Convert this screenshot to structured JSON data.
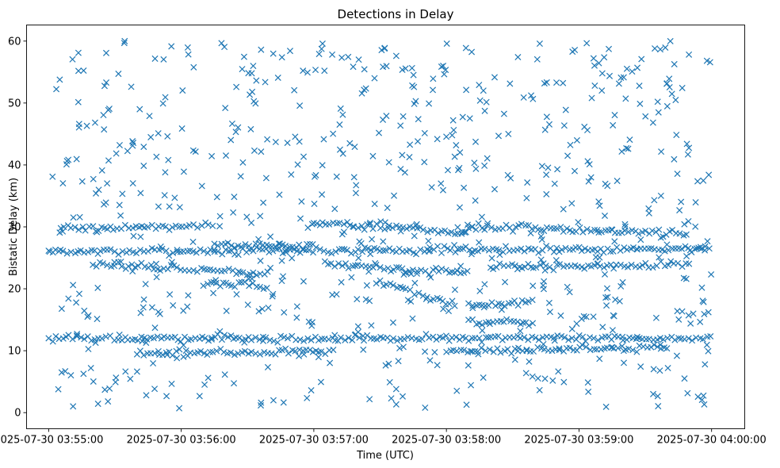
{
  "chart_data": {
    "type": "scatter",
    "title": "Detections in Delay",
    "xlabel": "Time (UTC)",
    "ylabel": "Bistatic Delay (km)",
    "xlim": [
      "2025-07-30 03:54:50",
      "2025-07-30 04:00:15"
    ],
    "ylim": [
      -2.6,
      62.6
    ],
    "x_ticks": [
      "2025-07-30 03:55:00",
      "2025-07-30 03:56:00",
      "2025-07-30 03:57:00",
      "2025-07-30 03:58:00",
      "2025-07-30 03:59:00",
      "2025-07-30 04:00:00"
    ],
    "y_ticks": [
      0,
      10,
      20,
      30,
      40,
      50,
      60
    ],
    "marker": "x",
    "grid": false,
    "color": "#1f77b4",
    "series": [
      {
        "tracks": [
          {
            "start": "2025-07-30 03:55:00",
            "end": "2025-07-30 04:00:00",
            "from": 26.0,
            "to": 26.5,
            "note": "dense band ~26 km"
          },
          {
            "start": "2025-07-30 03:55:05",
            "end": "2025-07-30 03:56:15",
            "from": 29.5,
            "to": 30.5
          },
          {
            "start": "2025-07-30 03:56:15",
            "end": "2025-07-30 03:57:00",
            "from": 27.0,
            "to": 27.0
          },
          {
            "start": "2025-07-30 03:57:00",
            "end": "2025-07-30 03:58:10",
            "from": 30.8,
            "to": 29.0
          },
          {
            "start": "2025-07-30 03:58:10",
            "end": "2025-07-30 03:59:50",
            "from": 30.0,
            "to": 29.0
          },
          {
            "start": "2025-07-30 03:55:20",
            "end": "2025-07-30 03:56:40",
            "from": 24.0,
            "to": 22.5
          },
          {
            "start": "2025-07-30 03:56:10",
            "end": "2025-07-30 03:56:40",
            "from": 21.0,
            "to": 20.5
          },
          {
            "start": "2025-07-30 03:57:30",
            "end": "2025-07-30 03:58:05",
            "from": 21.0,
            "to": 17.2
          },
          {
            "start": "2025-07-30 03:58:10",
            "end": "2025-07-30 03:58:40",
            "from": 17.2,
            "to": 18.0
          },
          {
            "start": "2025-07-30 03:57:05",
            "end": "2025-07-30 03:58:10",
            "from": 24.0,
            "to": 22.5
          },
          {
            "start": "2025-07-30 03:58:20",
            "end": "2025-07-30 03:59:50",
            "from": 23.5,
            "to": 24.0
          },
          {
            "start": "2025-07-30 03:55:00",
            "end": "2025-07-30 04:00:00",
            "from": 12.0,
            "to": 12.0,
            "note": "band ~12 km"
          },
          {
            "start": "2025-07-30 03:55:40",
            "end": "2025-07-30 03:57:10",
            "from": 9.5,
            "to": 10.0
          },
          {
            "start": "2025-07-30 03:58:00",
            "end": "2025-07-30 03:59:40",
            "from": 10.0,
            "to": 10.5
          },
          {
            "start": "2025-07-30 03:58:10",
            "end": "2025-07-30 03:58:40",
            "from": 14.5,
            "to": 14.5
          }
        ],
        "noise": {
          "count": 700,
          "start": "2025-07-30 03:55:00",
          "end": "2025-07-30 04:00:00",
          "min": 0.5,
          "max": 60.0,
          "seed": 7
        }
      }
    ]
  }
}
